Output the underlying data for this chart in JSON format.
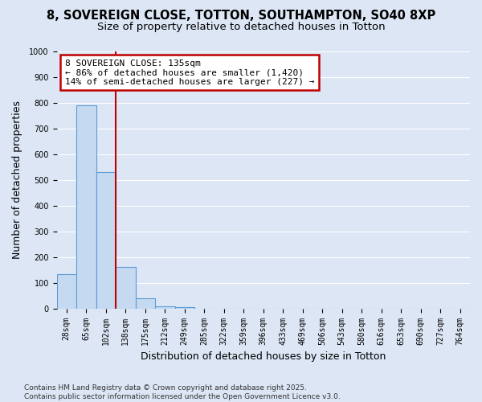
{
  "title_line1": "8, SOVEREIGN CLOSE, TOTTON, SOUTHAMPTON, SO40 8XP",
  "title_line2": "Size of property relative to detached houses in Totton",
  "xlabel": "Distribution of detached houses by size in Totton",
  "ylabel": "Number of detached properties",
  "categories": [
    "28sqm",
    "65sqm",
    "102sqm",
    "138sqm",
    "175sqm",
    "212sqm",
    "249sqm",
    "285sqm",
    "322sqm",
    "359sqm",
    "396sqm",
    "433sqm",
    "469sqm",
    "506sqm",
    "543sqm",
    "580sqm",
    "616sqm",
    "653sqm",
    "690sqm",
    "727sqm",
    "764sqm"
  ],
  "values": [
    135,
    790,
    530,
    163,
    40,
    8,
    5,
    0,
    0,
    0,
    0,
    0,
    0,
    0,
    0,
    0,
    0,
    0,
    0,
    0,
    0
  ],
  "bar_color": "#c5d9f0",
  "bar_edge_color": "#5b9bd5",
  "vline_x": 2.5,
  "vline_color": "#c00000",
  "annotation_line1": "8 SOVEREIGN CLOSE: 135sqm",
  "annotation_line2": "← 86% of detached houses are smaller (1,420)",
  "annotation_line3": "14% of semi-detached houses are larger (227) →",
  "annotation_box_color": "#c00000",
  "background_color": "#dce6f5",
  "plot_background": "#dce6f5",
  "ylim": [
    0,
    1000
  ],
  "yticks": [
    0,
    100,
    200,
    300,
    400,
    500,
    600,
    700,
    800,
    900,
    1000
  ],
  "grid_color": "#ffffff",
  "footer_line1": "Contains HM Land Registry data © Crown copyright and database right 2025.",
  "footer_line2": "Contains public sector information licensed under the Open Government Licence v3.0.",
  "title_fontsize": 10.5,
  "subtitle_fontsize": 9.5,
  "tick_fontsize": 7,
  "label_fontsize": 9,
  "annotation_fontsize": 8
}
